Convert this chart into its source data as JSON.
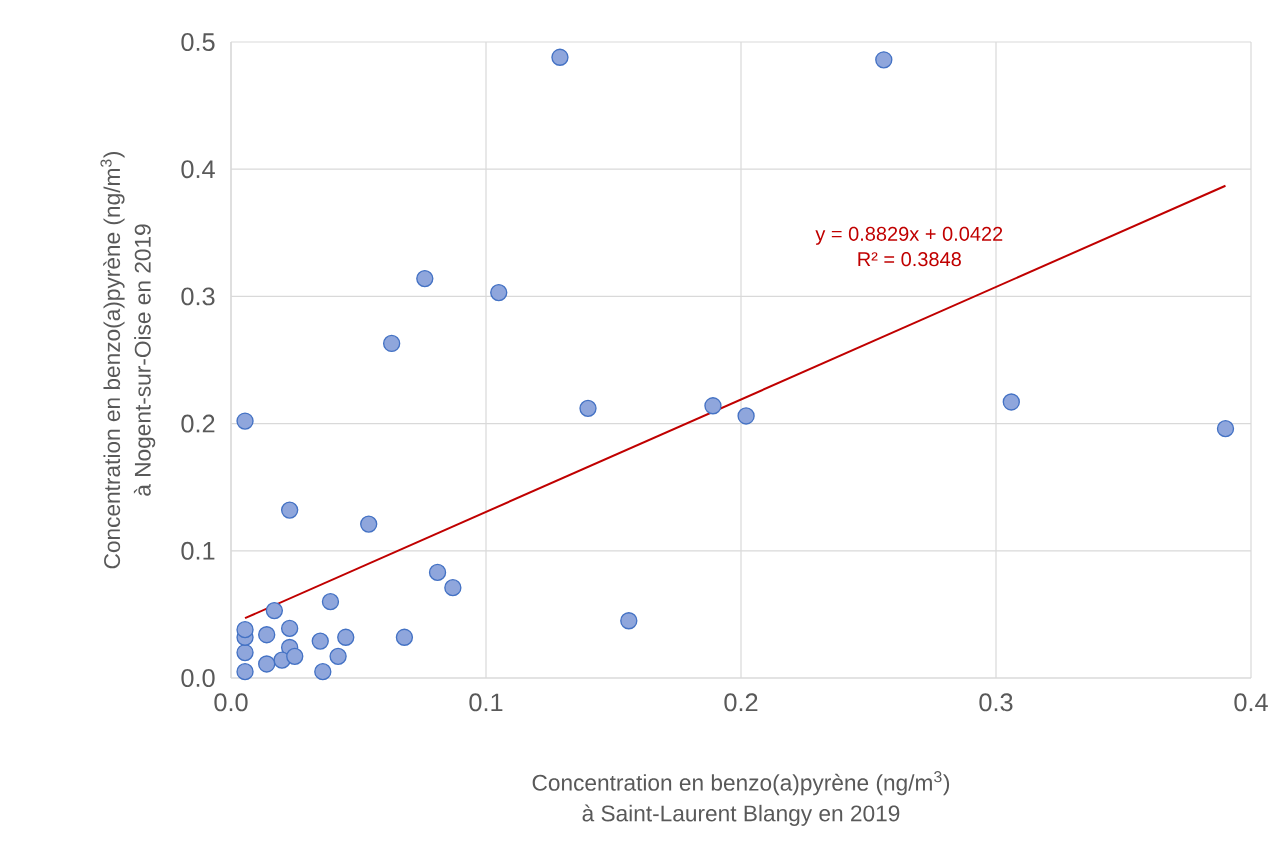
{
  "chart_data": {
    "type": "scatter",
    "xlabel": "Concentration en benzo(a)pyrène (ng/m$^{3}$)\nà Saint-Laurent Blangy en 2019",
    "ylabel": "Concentration en benzo(a)pyrène (ng/m$^{3}$)\nà Nogent-sur-Oise en 2019",
    "xlim": [
      0,
      0.4
    ],
    "ylim": [
      0,
      0.5
    ],
    "xticks": [
      {
        "value": 0,
        "label": "0.0"
      },
      0.1,
      0.2,
      0.3,
      0.4
    ],
    "yticks": [
      {
        "value": 0,
        "label": "0.0"
      },
      0.1,
      0.2,
      0.3,
      0.4,
      0.5
    ],
    "grid": true,
    "series": [
      {
        "marker": "circle",
        "color": "#8fa6dc",
        "x": [
          0.0055,
          0.0055,
          0.0055,
          0.0055,
          0.017,
          0.014,
          0.023,
          0.023,
          0.02,
          0.025,
          0.014,
          0.023,
          0.0055,
          0.035,
          0.036,
          0.042,
          0.045,
          0.039,
          0.054,
          0.068,
          0.081,
          0.087,
          0.063,
          0.076,
          0.105,
          0.129,
          0.14,
          0.156,
          0.189,
          0.202,
          0.256,
          0.306,
          0.39
        ],
        "values": [
          0.005,
          0.02,
          0.032,
          0.038,
          0.053,
          0.034,
          0.039,
          0.024,
          0.014,
          0.017,
          0.011,
          0.132,
          0.202,
          0.029,
          0.005,
          0.017,
          0.032,
          0.06,
          0.121,
          0.032,
          0.083,
          0.071,
          0.263,
          0.314,
          0.303,
          0.488,
          0.212,
          0.045,
          0.214,
          0.206,
          0.486,
          0.217,
          0.196
        ]
      },
      {
        "type": "line",
        "color": "#c00000",
        "x": [
          0.0055,
          0.39
        ],
        "values": [
          0.047,
          0.387
        ]
      }
    ],
    "annotations": [
      "y = 0.8829x + 0.0422",
      "R² = 0.3848"
    ]
  }
}
